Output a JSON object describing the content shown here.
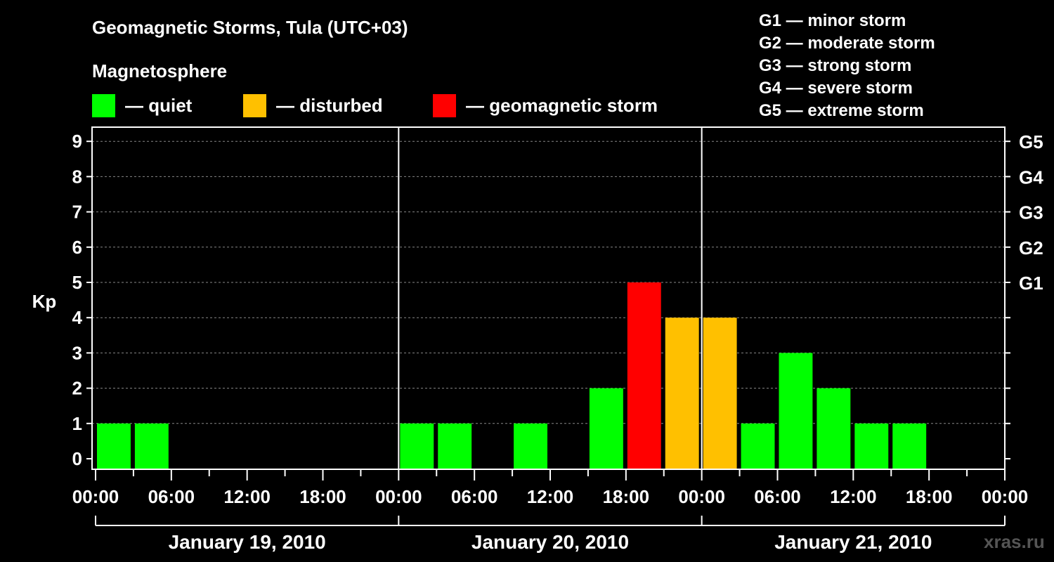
{
  "chart_data": {
    "type": "bar",
    "title": "Geomagnetic Storms, Tula (UTC+03)",
    "subtitle": "Magnetosphere",
    "ylabel": "Kp",
    "ylim": [
      0,
      9
    ],
    "yticks": [
      "0",
      "1",
      "2",
      "3",
      "4",
      "5",
      "6",
      "7",
      "8",
      "9"
    ],
    "right_ticks": [
      {
        "kp": 5,
        "label": "G1"
      },
      {
        "kp": 6,
        "label": "G2"
      },
      {
        "kp": 7,
        "label": "G3"
      },
      {
        "kp": 8,
        "label": "G4"
      },
      {
        "kp": 9,
        "label": "G5"
      }
    ],
    "xticks": [
      "00:00",
      "06:00",
      "12:00",
      "18:00",
      "00:00",
      "06:00",
      "12:00",
      "18:00",
      "00:00",
      "06:00",
      "12:00",
      "18:00",
      "00:00"
    ],
    "days": [
      "January 19, 2010",
      "January 20, 2010",
      "January 21, 2010"
    ],
    "interval_hours": 3,
    "values": [
      1,
      1,
      0,
      0,
      0,
      0,
      0,
      0,
      1,
      1,
      0,
      1,
      0,
      2,
      5,
      4,
      4,
      1,
      3,
      2,
      1,
      1,
      0,
      0
    ],
    "legend": [
      {
        "label": "— quiet",
        "color": "#00ff00"
      },
      {
        "label": "— disturbed",
        "color": "#ffc000"
      },
      {
        "label": "— geomagnetic storm",
        "color": "#ff0000"
      }
    ],
    "scale": [
      "G1 — minor storm",
      "G2 — moderate storm",
      "G3 — strong storm",
      "G4 — severe storm",
      "G5 — extreme storm"
    ],
    "colors": {
      "quiet": "#00ff00",
      "disturbed": "#ffc000",
      "storm": "#ff0000",
      "axis": "#ffffff",
      "grid": "#888888"
    }
  },
  "site": "xras.ru"
}
